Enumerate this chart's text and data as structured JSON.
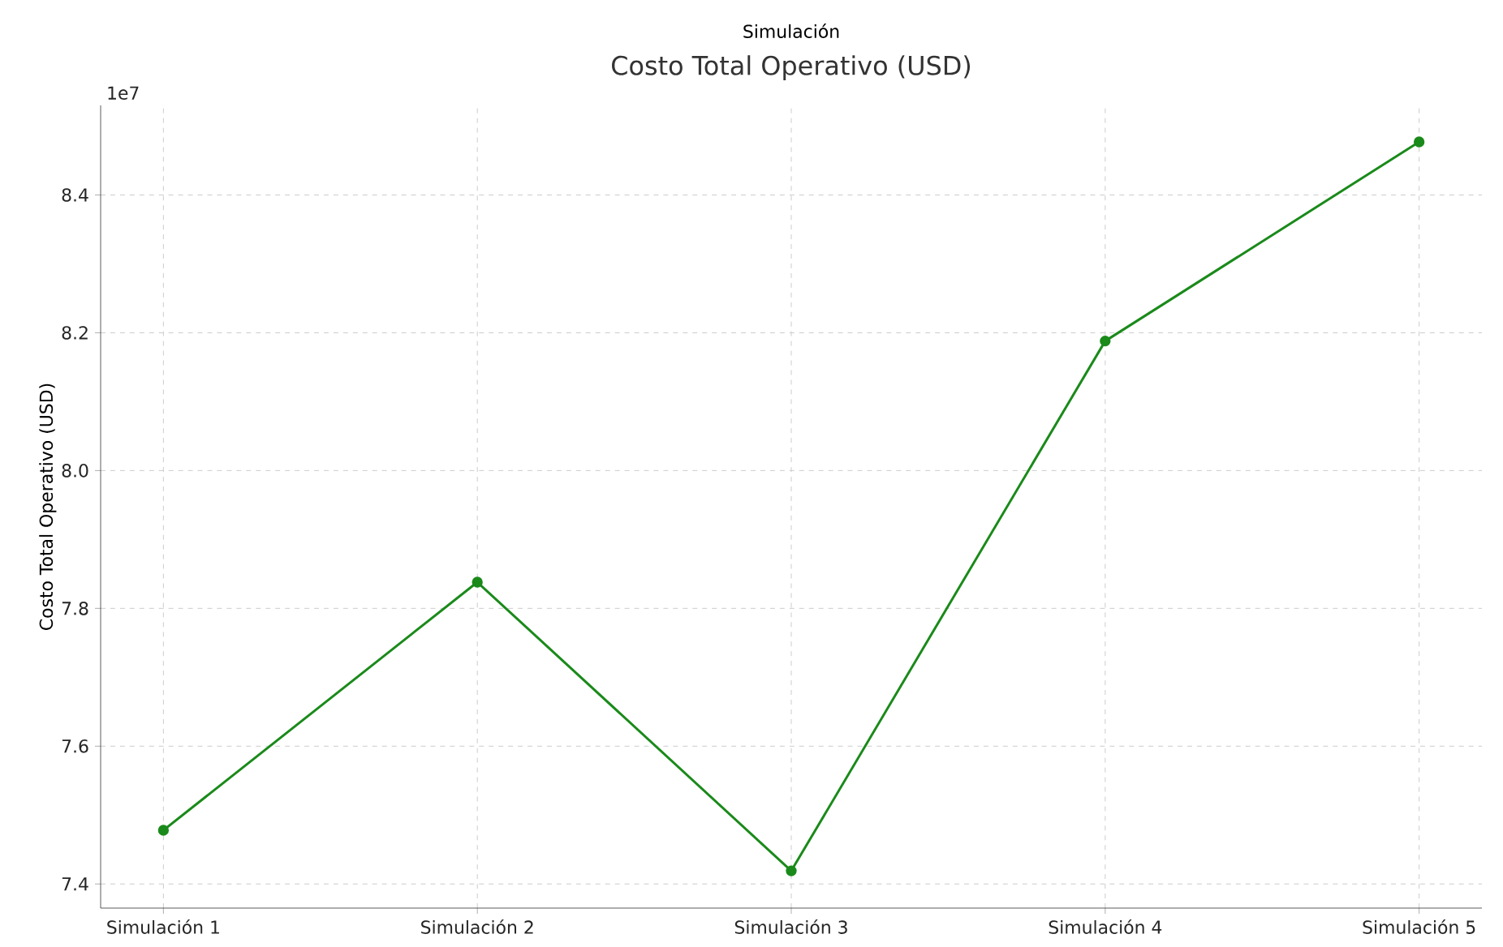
{
  "chart_data": {
    "type": "line",
    "title": "Costo Total Operativo (USD)",
    "xlabel": "Simulación",
    "ylabel": "Costo Total Operativo (USD)",
    "categories": [
      "Simulación 1",
      "Simulación 2",
      "Simulación 3",
      "Simulación 4",
      "Simulación 5"
    ],
    "series": [
      {
        "color": "#1a8a1a",
        "values": [
          7.478,
          7.838,
          7.419,
          8.188,
          8.477
        ]
      }
    ],
    "ylim": [
      7.365,
      8.53
    ],
    "yticks": [
      {
        "value": 7.4,
        "label": "7.4"
      },
      {
        "value": 7.6,
        "label": "7.6"
      },
      {
        "value": 7.8,
        "label": "7.8"
      },
      {
        "value": 8.0,
        "label": "8.0"
      },
      {
        "value": 8.2,
        "label": "8.2"
      },
      {
        "value": 8.4,
        "label": "8.4"
      }
    ],
    "annotations": [
      "1e7"
    ],
    "grid": true,
    "marker": "circle",
    "line_style": "solid"
  }
}
